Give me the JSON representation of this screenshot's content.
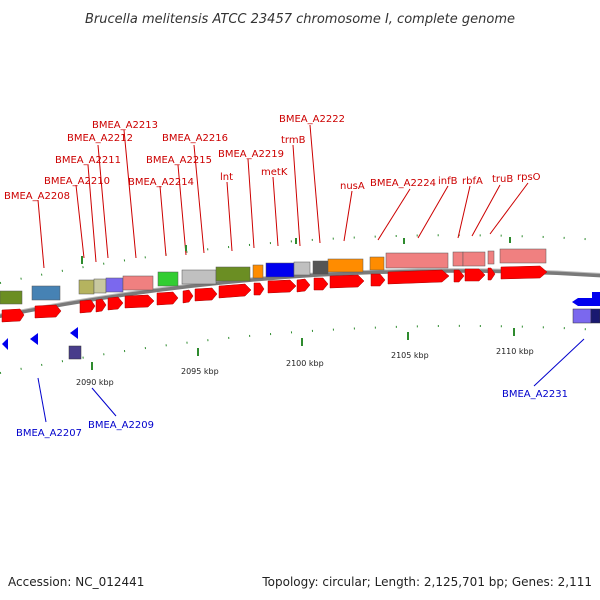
{
  "title": "Brucella melitensis ATCC 23457 chromosome I, complete genome",
  "footer": {
    "accession": "Accession: NC_012441",
    "topology": "Topology: circular; Length: 2,125,701 bp; Genes: 2,111"
  },
  "colors": {
    "forward_label": "#cc0000",
    "reverse_label": "#0000cc",
    "forward_cds": "#ff0000",
    "reverse_cds": "#0000ee",
    "backbone": "#808080",
    "tick": "#2e8b2e"
  },
  "forward_labels": [
    {
      "text": "BMEA_A2208"
    },
    {
      "text": "BMEA_A2210"
    },
    {
      "text": "BMEA_A2211"
    },
    {
      "text": "BMEA_A2212"
    },
    {
      "text": "BMEA_A2213"
    },
    {
      "text": "BMEA_A2214"
    },
    {
      "text": "BMEA_A2215"
    },
    {
      "text": "BMEA_A2216"
    },
    {
      "text": "lnt"
    },
    {
      "text": "BMEA_A2219"
    },
    {
      "text": "metK"
    },
    {
      "text": "trmB"
    },
    {
      "text": "BMEA_A2222"
    },
    {
      "text": "nusA"
    },
    {
      "text": "BMEA_A2224"
    },
    {
      "text": "infB"
    },
    {
      "text": "rbfA"
    },
    {
      "text": "truB"
    },
    {
      "text": "rpsO"
    }
  ],
  "reverse_labels": [
    {
      "text": "BMEA_A2207"
    },
    {
      "text": "BMEA_A2209"
    },
    {
      "text": "BMEA_A2231"
    }
  ],
  "ticks": [
    {
      "text": "2090 kbp"
    },
    {
      "text": "2095 kbp"
    },
    {
      "text": "2100 kbp"
    },
    {
      "text": "2105 kbp"
    },
    {
      "text": "2110 kbp"
    }
  ]
}
